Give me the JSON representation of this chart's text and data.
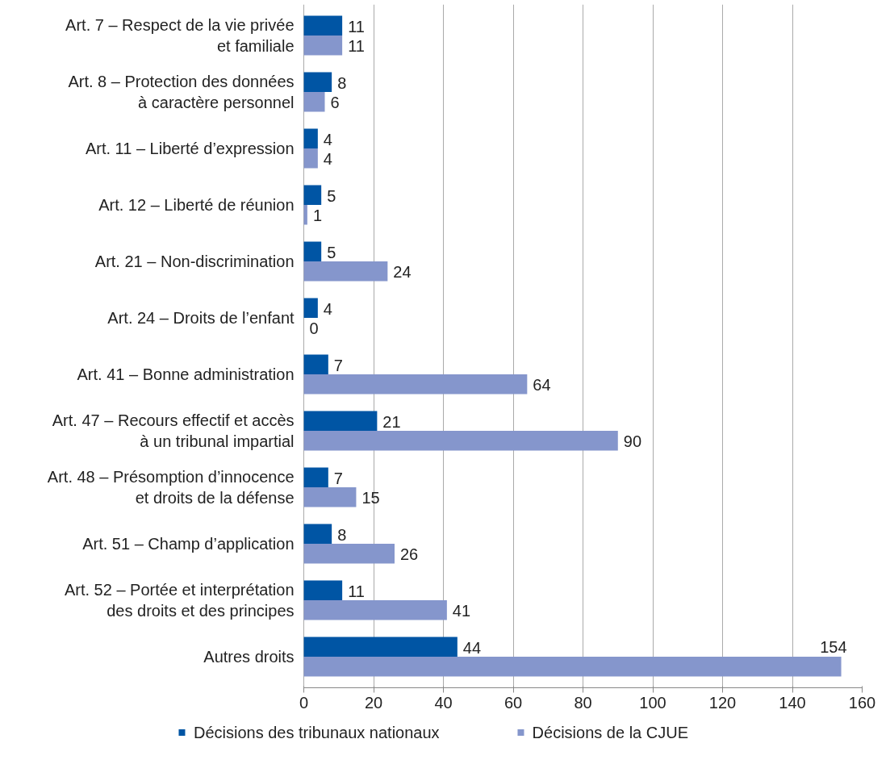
{
  "chart_data": {
    "type": "bar",
    "orientation": "horizontal",
    "categories": [
      "Art. 7 – Respect de la vie privée\net familiale",
      "Art. 8 – Protection des données\nà caractère personnel",
      "Art. 11 – Liberté d’expression",
      "Art. 12 – Liberté de réunion",
      "Art. 21 – Non-discrimination",
      "Art. 24 – Droits de l’enfant",
      "Art. 41 – Bonne administration",
      "Art. 47 – Recours effectif et accès\nà un tribunal impartial",
      "Art. 48 – Présomption d’innocence\net droits de la défense",
      "Art. 51 – Champ d’application",
      "Art. 52 – Portée et interprétation\ndes droits et des principes",
      "Autres droits"
    ],
    "series": [
      {
        "name": "Décisions des tribunaux nationaux",
        "color": "#0055a4",
        "values": [
          11,
          8,
          4,
          5,
          5,
          4,
          7,
          21,
          7,
          8,
          11,
          44
        ]
      },
      {
        "name": "Décisions de la CJUE",
        "color": "#8596cc",
        "values": [
          11,
          6,
          4,
          1,
          24,
          0,
          64,
          90,
          15,
          26,
          41,
          154
        ]
      }
    ],
    "xlim": [
      0,
      160
    ],
    "xticks": [
      0,
      20,
      40,
      60,
      80,
      100,
      120,
      140,
      160
    ],
    "grid": "x",
    "legend": "bottom",
    "data_labels": true
  }
}
